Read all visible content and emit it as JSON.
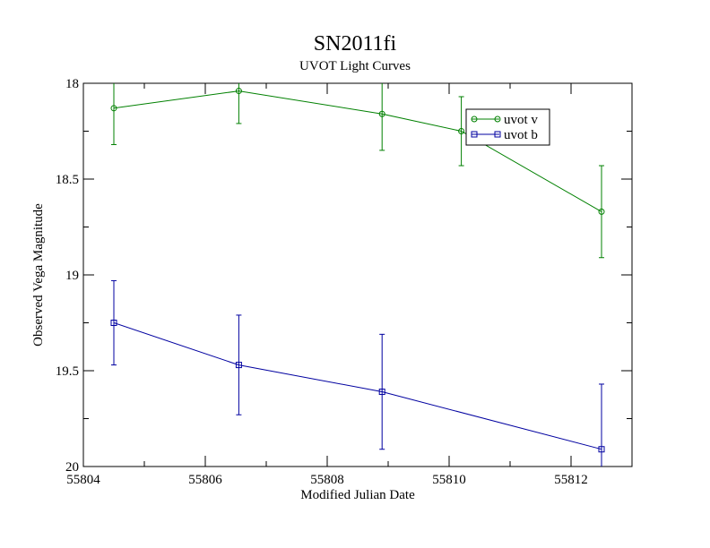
{
  "chart_data": {
    "type": "line",
    "title": "SN2011fi",
    "subtitle": "UVOT Light Curves",
    "xlabel": "Modified Julian Date",
    "ylabel": "Observed Vega Magnitude",
    "xlim": [
      55804,
      55813
    ],
    "ylim": [
      18,
      20
    ],
    "y_inverted": true,
    "x_ticks": [
      55804,
      55806,
      55808,
      55810,
      55812
    ],
    "x_tick_labels": [
      "55804",
      "55806",
      "55808",
      "55810",
      "55812"
    ],
    "y_ticks": [
      18,
      18.5,
      19,
      19.5,
      20
    ],
    "y_tick_labels": [
      "18",
      "18.5",
      "19",
      "19.5",
      "20"
    ],
    "grid": false,
    "legend_position": "top-right",
    "series": [
      {
        "name": "uvot v",
        "color": "#008000",
        "marker": "circle",
        "x": [
          55804.5,
          55806.55,
          55808.9,
          55810.2,
          55812.5
        ],
        "y": [
          18.13,
          18.04,
          18.16,
          18.25,
          18.67
        ],
        "yerr": [
          0.19,
          0.17,
          0.19,
          0.18,
          0.24
        ]
      },
      {
        "name": "uvot b",
        "color": "#0000a0",
        "marker": "square",
        "x": [
          55804.5,
          55806.55,
          55808.9,
          55812.5
        ],
        "y": [
          19.25,
          19.47,
          19.61,
          19.91
        ],
        "yerr": [
          0.22,
          0.26,
          0.3,
          0.34
        ]
      }
    ]
  }
}
